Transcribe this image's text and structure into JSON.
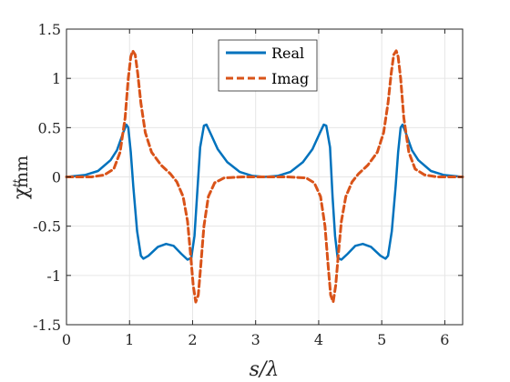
{
  "chart_data": {
    "type": "line",
    "xlabel": "s/λ",
    "ylabel_main": "χ",
    "ylabel_sup": "tt",
    "ylabel_sub": "mm",
    "xlim": [
      0,
      6.2832
    ],
    "ylim": [
      -1.5,
      1.5
    ],
    "xticks": [
      0,
      1,
      2,
      3,
      4,
      5,
      6
    ],
    "xtick_labels": [
      "0",
      "1",
      "2",
      "3",
      "4",
      "5",
      "6"
    ],
    "yticks": [
      -1.5,
      -1,
      -0.5,
      0,
      0.5,
      1,
      1.5
    ],
    "ytick_labels": [
      "-1.5",
      "-1",
      "-0.5",
      "0",
      "0.5",
      "1",
      "1.5"
    ],
    "grid": true,
    "legend_position": "top-center",
    "series": [
      {
        "name": "Real",
        "color": "#0072BD",
        "style": "solid",
        "points": [
          [
            0,
            0
          ],
          [
            0.3,
            0.02
          ],
          [
            0.5,
            0.06
          ],
          [
            0.7,
            0.17
          ],
          [
            0.8,
            0.27
          ],
          [
            0.9,
            0.45
          ],
          [
            0.95,
            0.53
          ],
          [
            0.98,
            0.5
          ],
          [
            1.02,
            0.25
          ],
          [
            1.06,
            -0.1
          ],
          [
            1.12,
            -0.55
          ],
          [
            1.18,
            -0.8
          ],
          [
            1.22,
            -0.83
          ],
          [
            1.3,
            -0.8
          ],
          [
            1.45,
            -0.71
          ],
          [
            1.58,
            -0.68
          ],
          [
            1.7,
            -0.7
          ],
          [
            1.82,
            -0.78
          ],
          [
            1.92,
            -0.84
          ],
          [
            1.98,
            -0.82
          ],
          [
            2.03,
            -0.6
          ],
          [
            2.07,
            -0.2
          ],
          [
            2.12,
            0.3
          ],
          [
            2.18,
            0.52
          ],
          [
            2.22,
            0.53
          ],
          [
            2.3,
            0.42
          ],
          [
            2.4,
            0.28
          ],
          [
            2.55,
            0.15
          ],
          [
            2.75,
            0.05
          ],
          [
            2.95,
            0.01
          ],
          [
            3.14,
            0
          ],
          [
            3.35,
            0.01
          ],
          [
            3.55,
            0.05
          ],
          [
            3.75,
            0.15
          ],
          [
            3.9,
            0.28
          ],
          [
            4.0,
            0.42
          ],
          [
            4.08,
            0.53
          ],
          [
            4.12,
            0.52
          ],
          [
            4.18,
            0.3
          ],
          [
            4.22,
            -0.2
          ],
          [
            4.26,
            -0.6
          ],
          [
            4.3,
            -0.82
          ],
          [
            4.36,
            -0.84
          ],
          [
            4.46,
            -0.78
          ],
          [
            4.58,
            -0.7
          ],
          [
            4.7,
            -0.68
          ],
          [
            4.83,
            -0.71
          ],
          [
            4.98,
            -0.8
          ],
          [
            5.06,
            -0.83
          ],
          [
            5.1,
            -0.8
          ],
          [
            5.16,
            -0.55
          ],
          [
            5.22,
            -0.1
          ],
          [
            5.26,
            0.25
          ],
          [
            5.3,
            0.5
          ],
          [
            5.33,
            0.53
          ],
          [
            5.38,
            0.45
          ],
          [
            5.48,
            0.27
          ],
          [
            5.58,
            0.17
          ],
          [
            5.78,
            0.06
          ],
          [
            5.98,
            0.02
          ],
          [
            6.2832,
            0
          ]
        ]
      },
      {
        "name": "Imag",
        "color": "#D95319",
        "style": "dashed",
        "points": [
          [
            0,
            0
          ],
          [
            0.4,
            0.0
          ],
          [
            0.6,
            0.02
          ],
          [
            0.75,
            0.08
          ],
          [
            0.85,
            0.25
          ],
          [
            0.93,
            0.6
          ],
          [
            0.98,
            1.0
          ],
          [
            1.02,
            1.22
          ],
          [
            1.05,
            1.28
          ],
          [
            1.09,
            1.24
          ],
          [
            1.13,
            1.05
          ],
          [
            1.18,
            0.75
          ],
          [
            1.25,
            0.45
          ],
          [
            1.35,
            0.25
          ],
          [
            1.5,
            0.12
          ],
          [
            1.65,
            0.03
          ],
          [
            1.75,
            -0.05
          ],
          [
            1.85,
            -0.2
          ],
          [
            1.92,
            -0.45
          ],
          [
            1.97,
            -0.8
          ],
          [
            2.01,
            -1.1
          ],
          [
            2.05,
            -1.27
          ],
          [
            2.09,
            -1.2
          ],
          [
            2.13,
            -0.9
          ],
          [
            2.18,
            -0.5
          ],
          [
            2.25,
            -0.2
          ],
          [
            2.35,
            -0.06
          ],
          [
            2.5,
            -0.01
          ],
          [
            2.8,
            0
          ],
          [
            3.14,
            0
          ],
          [
            3.5,
            0
          ],
          [
            3.8,
            -0.01
          ],
          [
            3.93,
            -0.06
          ],
          [
            4.03,
            -0.2
          ],
          [
            4.1,
            -0.5
          ],
          [
            4.15,
            -0.9
          ],
          [
            4.19,
            -1.2
          ],
          [
            4.23,
            -1.27
          ],
          [
            4.27,
            -1.1
          ],
          [
            4.31,
            -0.8
          ],
          [
            4.36,
            -0.45
          ],
          [
            4.43,
            -0.2
          ],
          [
            4.53,
            -0.05
          ],
          [
            4.63,
            0.03
          ],
          [
            4.78,
            0.12
          ],
          [
            4.93,
            0.25
          ],
          [
            5.03,
            0.45
          ],
          [
            5.1,
            0.75
          ],
          [
            5.15,
            1.05
          ],
          [
            5.19,
            1.24
          ],
          [
            5.23,
            1.28
          ],
          [
            5.26,
            1.22
          ],
          [
            5.3,
            1.0
          ],
          [
            5.35,
            0.6
          ],
          [
            5.43,
            0.25
          ],
          [
            5.53,
            0.08
          ],
          [
            5.68,
            0.02
          ],
          [
            5.88,
            0.0
          ],
          [
            6.2832,
            0
          ]
        ]
      }
    ]
  }
}
